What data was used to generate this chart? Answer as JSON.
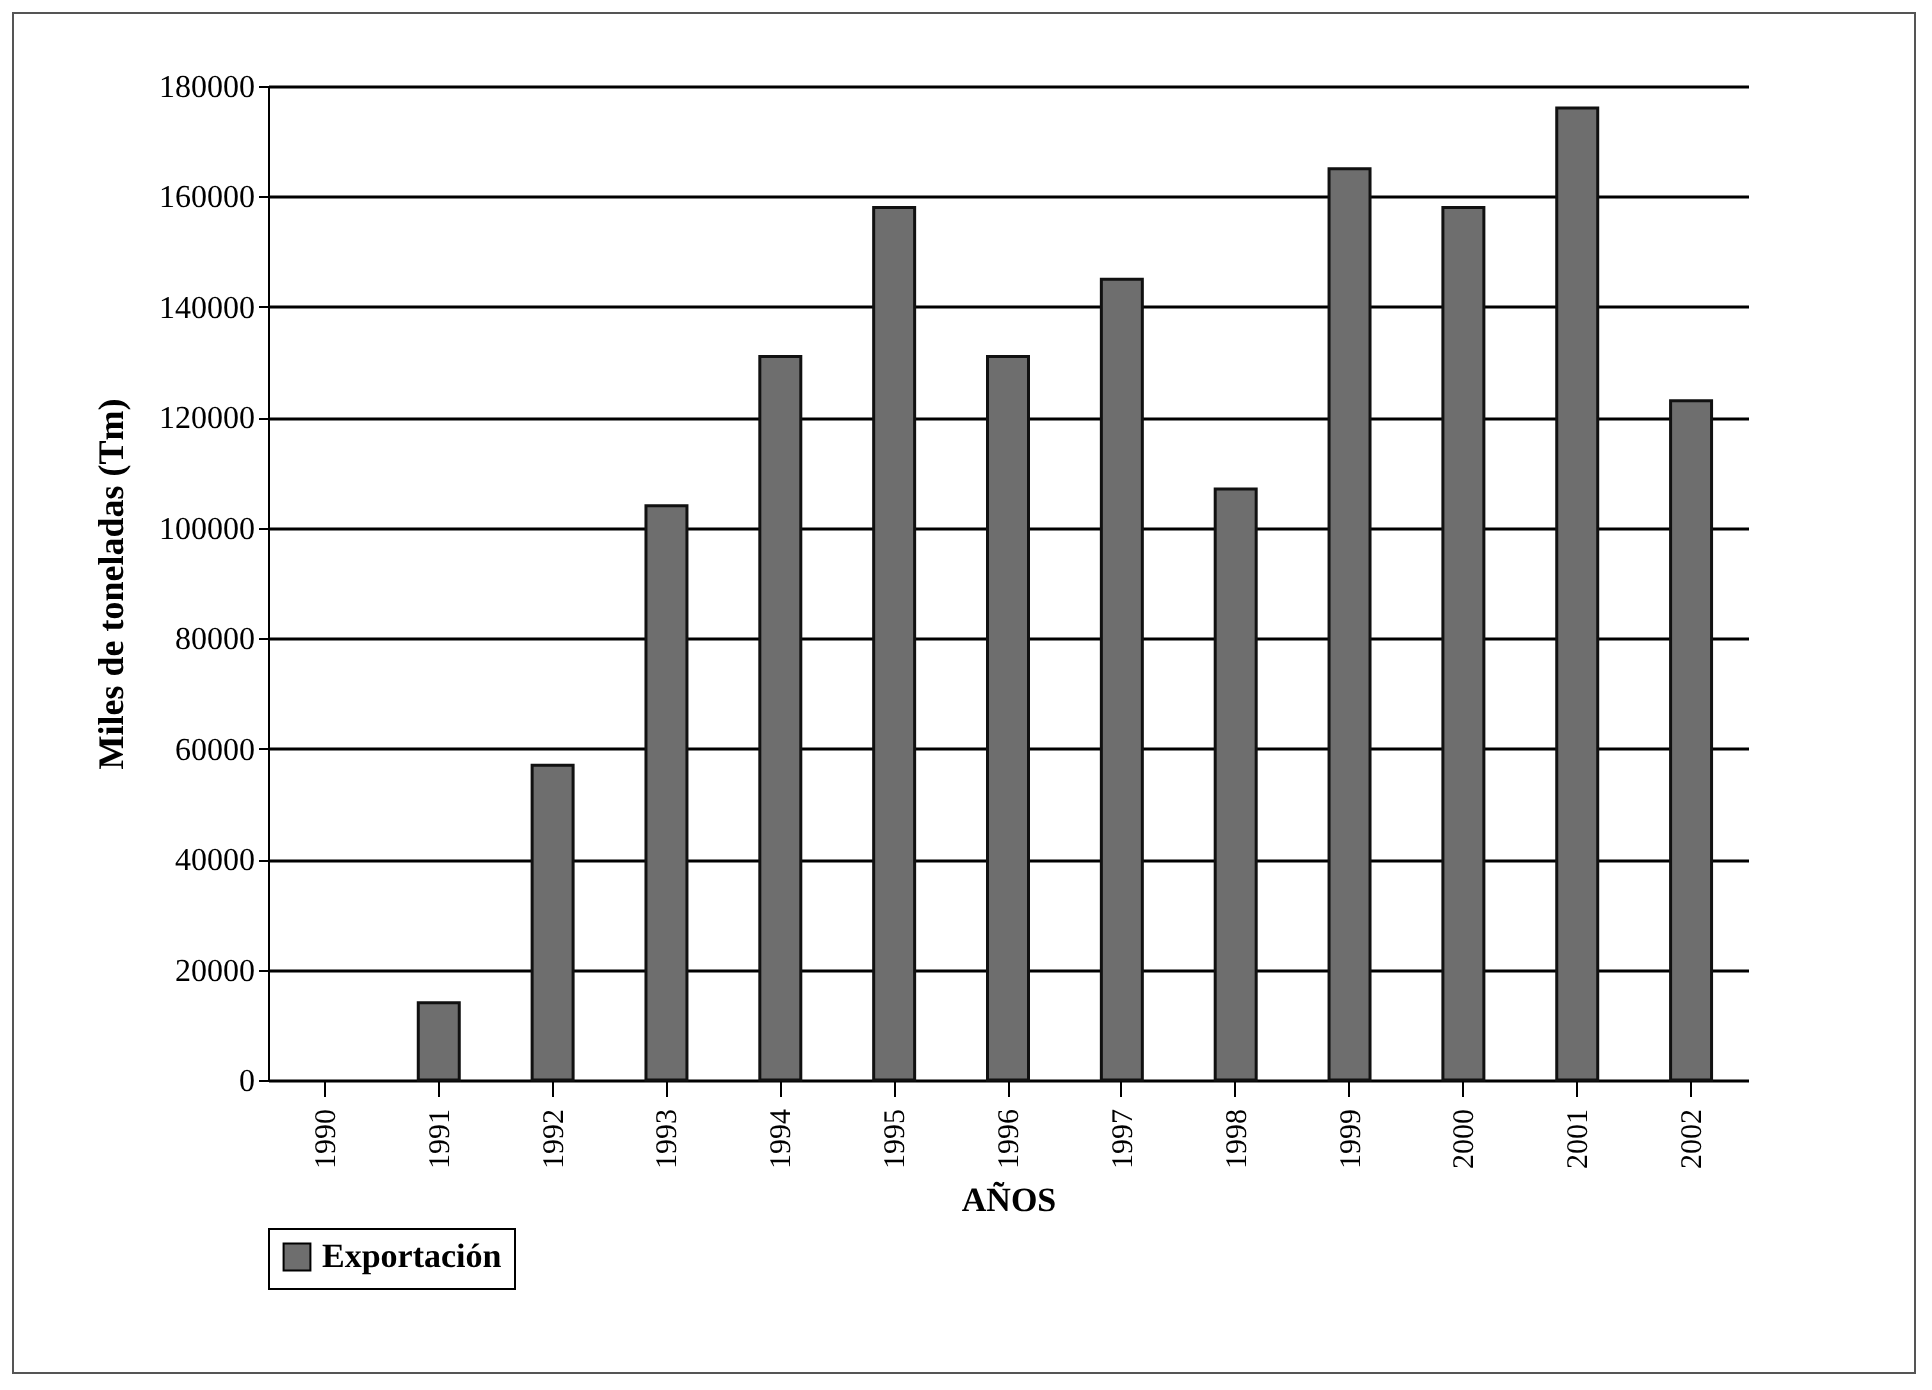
{
  "chart_data": {
    "type": "bar",
    "xlabel": "AÑOS",
    "ylabel": "Miles de toneladas (Tm)",
    "categories": [
      "1990",
      "1991",
      "1992",
      "1993",
      "1994",
      "1995",
      "1996",
      "1997",
      "1998",
      "1999",
      "2000",
      "2001",
      "2002"
    ],
    "series": [
      {
        "name": "Exportación",
        "color": "#6e6e6e",
        "values": [
          0,
          14000,
          57000,
          104000,
          131000,
          158000,
          131000,
          145000,
          107000,
          165000,
          158000,
          176000,
          123000
        ]
      }
    ],
    "ylim": [
      0,
      180000
    ],
    "yticks": [
      0,
      20000,
      40000,
      60000,
      80000,
      100000,
      120000,
      140000,
      160000,
      180000
    ],
    "grid": "y",
    "legend": "bottom"
  }
}
